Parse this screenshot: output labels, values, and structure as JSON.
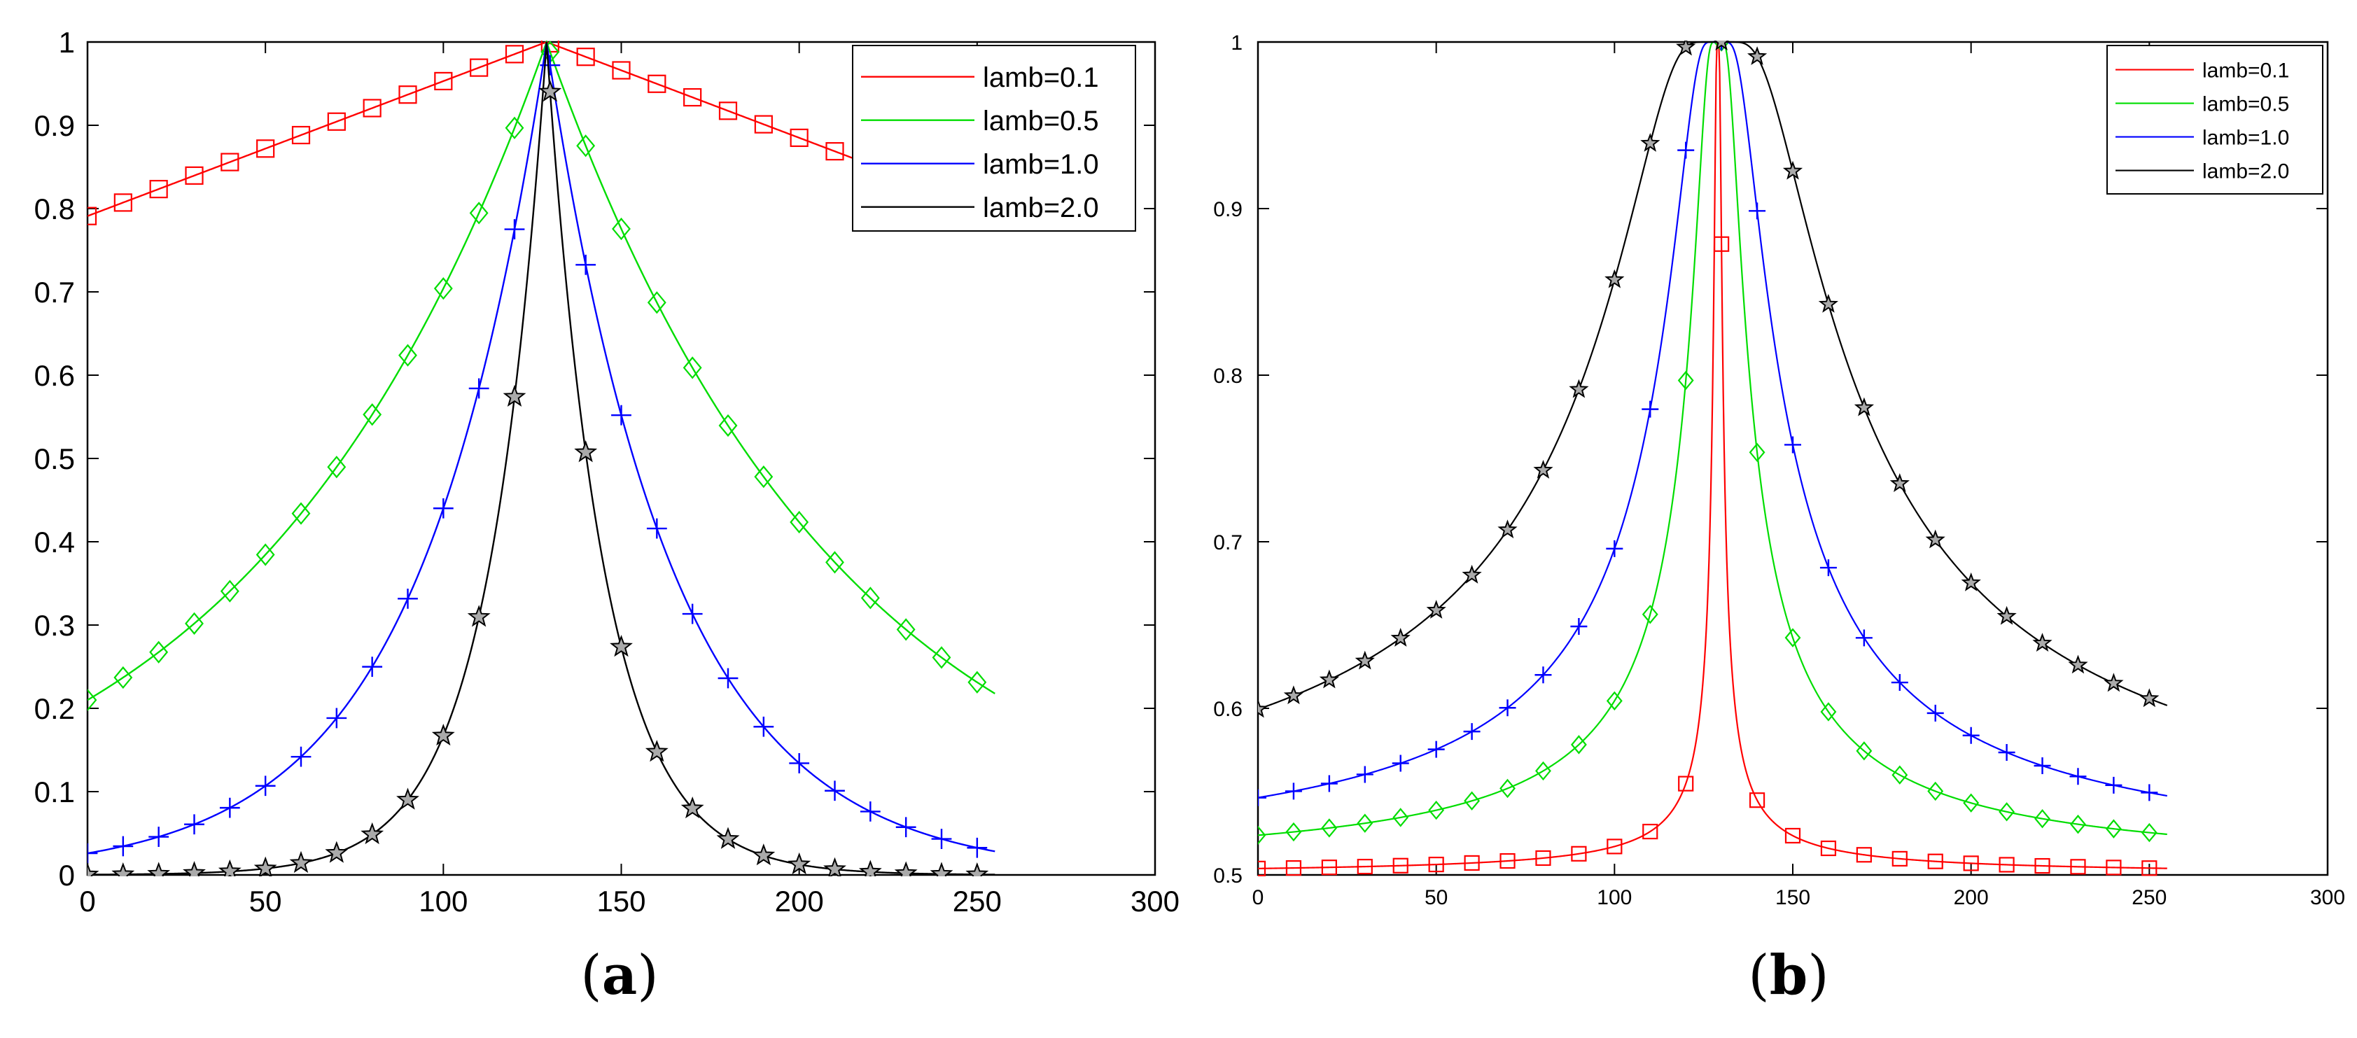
{
  "chart_data": [
    {
      "id": "a",
      "type": "line",
      "caption_letter": "a",
      "caption_open": "(",
      "caption_close": ")",
      "xlim": [
        0,
        300
      ],
      "ylim": [
        0,
        1
      ],
      "xticks": [
        0,
        50,
        100,
        150,
        200,
        250,
        300
      ],
      "yticks": [
        0,
        0.1,
        0.2,
        0.3,
        0.4,
        0.5,
        0.6,
        0.7,
        0.8,
        0.9,
        1
      ],
      "ytick_labels": [
        "0",
        "0.1",
        "0.2",
        "0.3",
        "0.4",
        "0.5",
        "0.6",
        "0.7",
        "0.8",
        "0.9",
        "1"
      ],
      "legend_position": "top-right",
      "x_range": [
        0,
        255
      ],
      "peak_x": 129,
      "marker_x": [
        0,
        10,
        20,
        30,
        40,
        50,
        60,
        70,
        80,
        90,
        100,
        110,
        120,
        130,
        140,
        150,
        160,
        170,
        180,
        190,
        200,
        210,
        220,
        230,
        240,
        250
      ],
      "series": [
        {
          "name": "lamb=0.1",
          "color": "#ff0000",
          "marker": "square",
          "model": "linear",
          "base": 0.79,
          "slope": 0.00162
        },
        {
          "name": "lamb=0.5",
          "color": "#00dd00",
          "marker": "diamond",
          "model": "exp",
          "rate": 0.0121
        },
        {
          "name": "lamb=1.0",
          "color": "#0000ff",
          "marker": "plus",
          "model": "exp",
          "rate": 0.0283
        },
        {
          "name": "lamb=2.0",
          "color": "#000000",
          "marker": "star",
          "model": "exp",
          "rate": 0.0617
        }
      ]
    },
    {
      "id": "b",
      "type": "line",
      "caption_letter": "b",
      "caption_open": "(",
      "caption_close": ")",
      "xlim": [
        0,
        300
      ],
      "ylim": [
        0.5,
        1
      ],
      "xticks": [
        0,
        50,
        100,
        150,
        200,
        250,
        300
      ],
      "yticks": [
        0.5,
        0.6,
        0.7,
        0.8,
        0.9,
        1
      ],
      "ytick_labels": [
        "0.5",
        "0.6",
        "0.7",
        "0.8",
        "0.9",
        "1"
      ],
      "legend_position": "top-right",
      "x_range": [
        0,
        255
      ],
      "peak_x": 129,
      "marker_x": [
        0,
        10,
        20,
        30,
        40,
        50,
        60,
        70,
        80,
        90,
        100,
        110,
        120,
        130,
        140,
        150,
        160,
        170,
        180,
        190,
        200,
        210,
        220,
        230,
        240,
        250
      ],
      "series": [
        {
          "name": "lamb=0.1",
          "color": "#ff0000",
          "marker": "square",
          "model": "sigmoid",
          "scale": 1.98
        },
        {
          "name": "lamb=0.5",
          "color": "#00dd00",
          "marker": "diamond",
          "model": "sigmoid",
          "scale": 12.3
        },
        {
          "name": "lamb=1.0",
          "color": "#0000ff",
          "marker": "plus",
          "model": "sigmoid",
          "scale": 24.0
        },
        {
          "name": "lamb=2.0",
          "color": "#000000",
          "marker": "star",
          "model": "sigmoid",
          "scale": 52.0
        }
      ]
    }
  ]
}
